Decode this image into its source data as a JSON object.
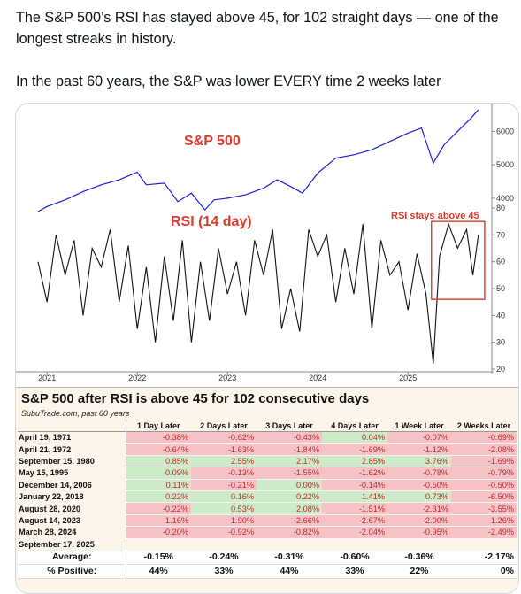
{
  "tweet": {
    "line1": "The S&P 500’s RSI has stayed above 45, for 102 straight days — one of the longest streaks in history.",
    "line2": "In the past 60 years, the S&P was lower EVERY time 2 weeks later"
  },
  "chart_data": [
    {
      "type": "line",
      "title": "S&P 500",
      "x_tick_labels": [
        "2021",
        "2022",
        "2023",
        "2024",
        "2025"
      ],
      "y_tick_labels": [
        "4000",
        "5000",
        "6000"
      ],
      "ylim": [
        3600,
        6700
      ],
      "x": [
        2020.9,
        2021.0,
        2021.2,
        2021.4,
        2021.6,
        2021.8,
        2022.0,
        2022.1,
        2022.3,
        2022.45,
        2022.6,
        2022.75,
        2022.85,
        2023.0,
        2023.2,
        2023.4,
        2023.55,
        2023.7,
        2023.83,
        2024.0,
        2024.2,
        2024.4,
        2024.6,
        2024.8,
        2025.0,
        2025.15,
        2025.28,
        2025.4,
        2025.55,
        2025.7,
        2025.78
      ],
      "values": [
        3600,
        3750,
        3950,
        4200,
        4400,
        4550,
        4780,
        4400,
        4450,
        3900,
        4150,
        3650,
        3950,
        4000,
        4100,
        4300,
        4550,
        4350,
        4150,
        4750,
        5200,
        5300,
        5450,
        5700,
        5950,
        6100,
        5050,
        5600,
        6000,
        6400,
        6650
      ],
      "color": "#1f1fd8"
    },
    {
      "type": "line",
      "title": "RSI (14 day)",
      "annotation": "RSI stays above 45",
      "y_tick_labels": [
        "20",
        "30",
        "40",
        "50",
        "60",
        "70",
        "80"
      ],
      "ylim": [
        20,
        80
      ],
      "x": [
        2020.9,
        2021.0,
        2021.1,
        2021.2,
        2021.3,
        2021.4,
        2021.5,
        2021.6,
        2021.7,
        2021.8,
        2021.9,
        2022.0,
        2022.1,
        2022.2,
        2022.3,
        2022.4,
        2022.5,
        2022.6,
        2022.7,
        2022.8,
        2022.9,
        2023.0,
        2023.1,
        2023.2,
        2023.3,
        2023.4,
        2023.5,
        2023.6,
        2023.7,
        2023.8,
        2023.9,
        2024.0,
        2024.1,
        2024.2,
        2024.3,
        2024.4,
        2024.5,
        2024.6,
        2024.7,
        2024.8,
        2024.9,
        2025.0,
        2025.1,
        2025.2,
        2025.28,
        2025.35,
        2025.45,
        2025.55,
        2025.65,
        2025.72,
        2025.78
      ],
      "values": [
        60,
        45,
        70,
        55,
        68,
        40,
        65,
        58,
        72,
        45,
        66,
        35,
        58,
        30,
        62,
        38,
        68,
        30,
        60,
        38,
        65,
        48,
        60,
        40,
        68,
        55,
        72,
        35,
        50,
        34,
        72,
        62,
        70,
        45,
        65,
        48,
        74,
        35,
        68,
        55,
        60,
        42,
        63,
        48,
        22,
        62,
        74,
        65,
        72,
        55,
        70
      ],
      "color": "#111111"
    }
  ],
  "table": {
    "title": "S&P 500 after RSI is above 45 for 102 consecutive days",
    "subtitle": "SubuTrade.com, past 60 years",
    "headers": [
      "",
      "1 Day Later",
      "2 Days Later",
      "3 Days Later",
      "4 Days Later",
      "1 Week Later",
      "2 Weeks Later"
    ],
    "rows": [
      {
        "date": "April 19, 1971",
        "values": [
          "-0.38%",
          "-0.62%",
          "-0.43%",
          "0.04%",
          "-0.07%",
          "-0.69%"
        ]
      },
      {
        "date": "April 21, 1972",
        "values": [
          "-0.64%",
          "-1.63%",
          "-1.84%",
          "-1.69%",
          "-1.12%",
          "-2.08%"
        ]
      },
      {
        "date": "September 15, 1980",
        "values": [
          "0.85%",
          "2.55%",
          "2.17%",
          "2.85%",
          "3.76%",
          "-1.69%"
        ]
      },
      {
        "date": "May 15, 1995",
        "values": [
          "0.09%",
          "-0.13%",
          "-1.55%",
          "-1.62%",
          "-0.78%",
          "-0.79%"
        ]
      },
      {
        "date": "December 14, 2006",
        "values": [
          "0.11%",
          "-0.21%",
          "0.00%",
          "-0.14%",
          "-0.50%",
          "-0.50%"
        ]
      },
      {
        "date": "January 22, 2018",
        "values": [
          "0.22%",
          "0.16%",
          "0.22%",
          "1.41%",
          "0.73%",
          "-6.50%"
        ]
      },
      {
        "date": "August 28, 2020",
        "values": [
          "-0.22%",
          "0.53%",
          "2.08%",
          "-1.51%",
          "-2.31%",
          "-3.55%"
        ]
      },
      {
        "date": "August 14, 2023",
        "values": [
          "-1.16%",
          "-1.90%",
          "-2.66%",
          "-2.67%",
          "-2.00%",
          "-1.26%"
        ]
      },
      {
        "date": "March 28, 2024",
        "values": [
          "-0.20%",
          "-0.92%",
          "-0.82%",
          "-2.04%",
          "-0.95%",
          "-2.49%"
        ]
      },
      {
        "date": "September 17, 2025",
        "values": [
          "",
          "",
          "",
          "",
          "",
          ""
        ]
      }
    ],
    "average": {
      "label": "Average:",
      "values": [
        "-0.15%",
        "-0.24%",
        "-0.31%",
        "-0.60%",
        "-0.36%",
        "-2.17%"
      ]
    },
    "positive": {
      "label": "% Positive:",
      "values": [
        "44%",
        "33%",
        "44%",
        "33%",
        "22%",
        "0%"
      ]
    }
  }
}
